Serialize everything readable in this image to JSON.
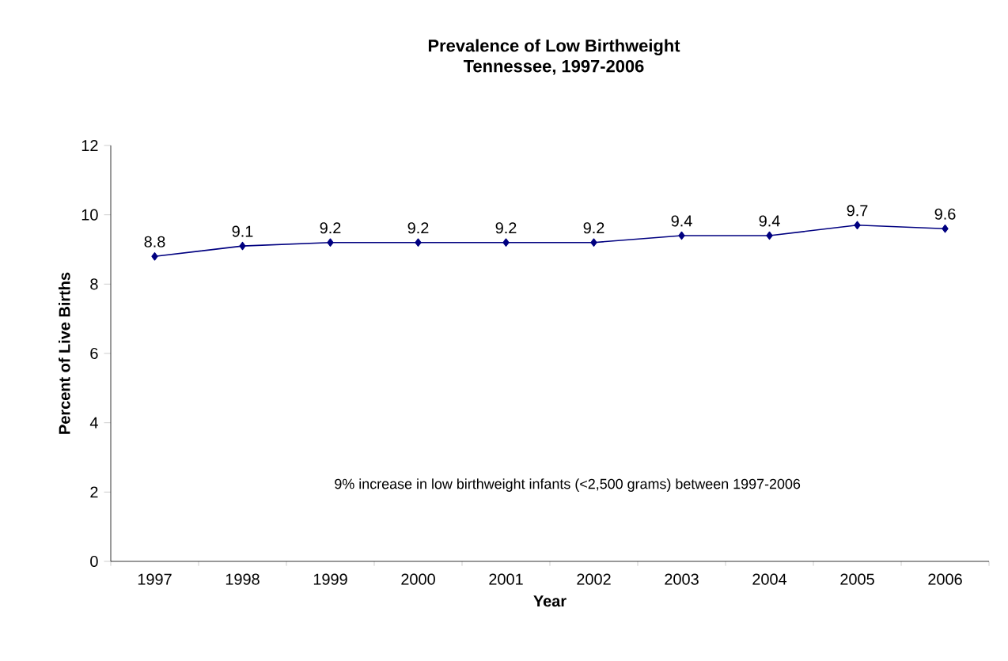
{
  "chart_data": {
    "type": "line",
    "title": "Prevalence of Low Birthweight",
    "subtitle": "Tennessee, 1997-2006",
    "xlabel": "Year",
    "ylabel": "Percent of Live Births",
    "categories": [
      "1997",
      "1998",
      "1999",
      "2000",
      "2001",
      "2002",
      "2003",
      "2004",
      "2005",
      "2006"
    ],
    "series": [
      {
        "color": "#000080",
        "values": [
          8.8,
          9.1,
          9.2,
          9.2,
          9.2,
          9.2,
          9.4,
          9.4,
          9.7,
          9.6
        ]
      }
    ],
    "ylim": [
      0,
      12
    ],
    "yticks": [
      0,
      2,
      4,
      6,
      8,
      10,
      12
    ],
    "marker": "diamond",
    "line_style": "solid",
    "data_labels": true,
    "annotations": [
      "9% increase in low birthweight infants (<2,500 grams) between 1997-2006"
    ]
  }
}
